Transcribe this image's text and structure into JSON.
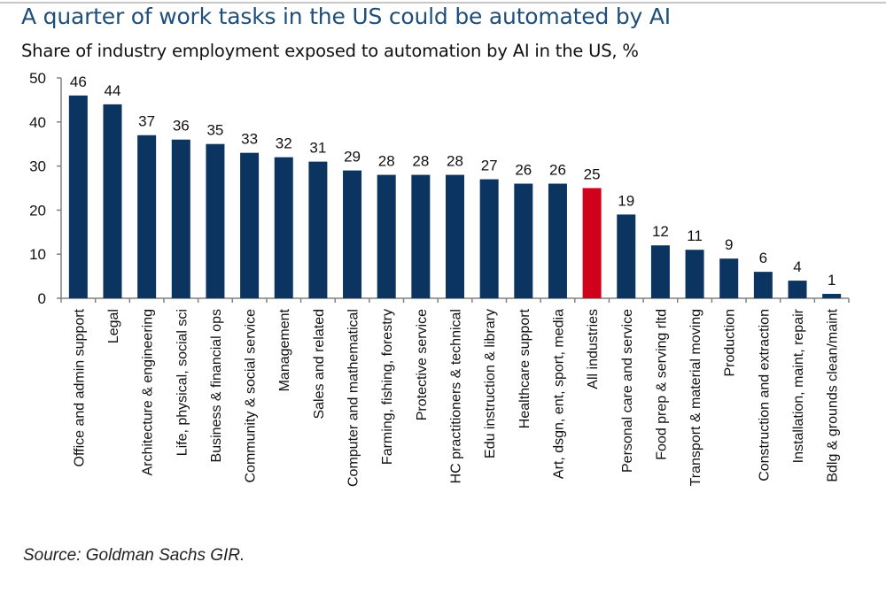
{
  "header": {
    "title": "A quarter of work tasks in the US could be automated by AI",
    "subtitle": "Share of industry employment exposed to automation by AI in the US, %"
  },
  "footer": {
    "source": "Source: Goldman Sachs GIR."
  },
  "colors": {
    "bar": "#0b3461",
    "highlight": "#d0021b",
    "axis": "#808080",
    "title": "#1f4e79"
  },
  "chart_data": {
    "type": "bar",
    "title": "A quarter of work tasks in the US could be automated by AI",
    "subtitle": "Share of industry employment exposed to automation by AI in the US, %",
    "xlabel": "",
    "ylabel": "",
    "ylim": [
      0,
      50
    ],
    "yticks": [
      0,
      10,
      20,
      30,
      40,
      50
    ],
    "grid": false,
    "legend": "none",
    "highlight_category": "All industries",
    "categories": [
      "Office and admin support",
      "Legal",
      "Architecture & engineering",
      "Life, physical, social sci",
      "Business & financial ops",
      "Community & social service",
      "Management",
      "Sales and related",
      "Computer and mathematical",
      "Farming, fishing, forestry",
      "Protective service",
      "HC practitioners & technical",
      "Edu instruction & library",
      "Healthcare support",
      "Art, dsgn, ent, sport, media",
      "All industries",
      "Personal care and service",
      "Food prep & serving rltd",
      "Transport & material moving",
      "Production",
      "Construction and extraction",
      "Installation, maint, repair",
      "Bdlg & grounds clean/maint"
    ],
    "values": [
      46,
      44,
      37,
      36,
      35,
      33,
      32,
      31,
      29,
      28,
      28,
      28,
      27,
      26,
      26,
      25,
      19,
      12,
      11,
      9,
      6,
      4,
      1
    ],
    "data_labels": [
      "46",
      "44",
      "37",
      "36",
      "35",
      "33",
      "32",
      "31",
      "29",
      "28",
      "28",
      "28",
      "27",
      "26",
      "26",
      "25",
      "19",
      "12",
      "11",
      "9",
      "6",
      "4",
      "1"
    ],
    "source": "Source: Goldman Sachs GIR."
  }
}
